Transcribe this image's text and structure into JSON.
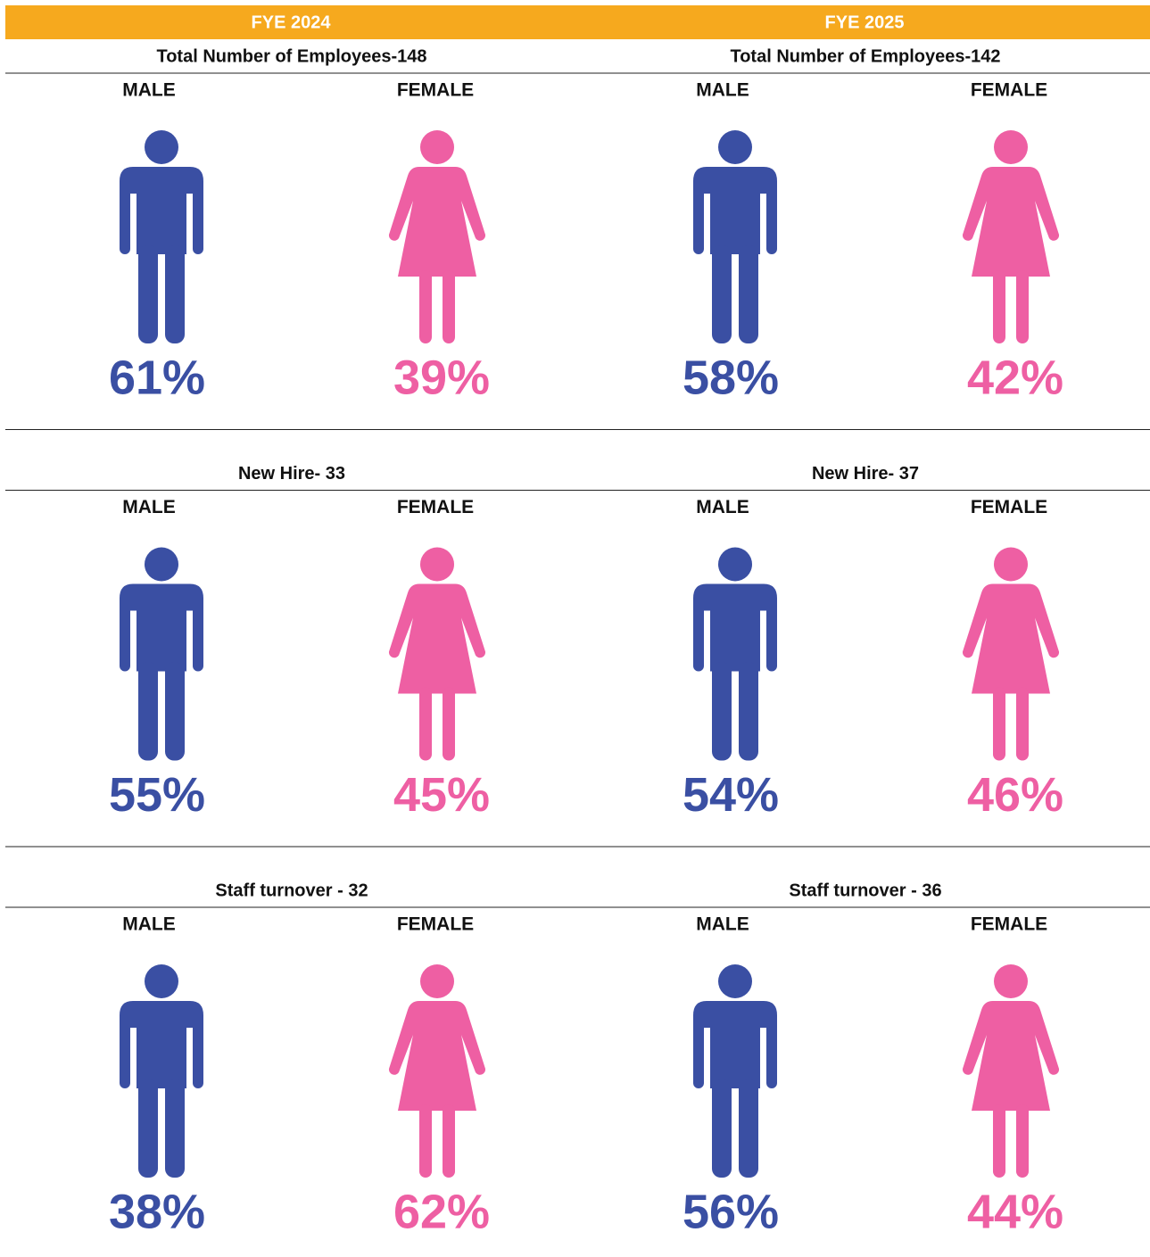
{
  "columns": [
    "FYE 2024",
    "FYE 2025"
  ],
  "colors": [
    "#3a4fa3",
    "#ee5fa3"
  ],
  "header_color": "#f6a91e",
  "sections": [
    {
      "titles": [
        "Total Number of Employees-148",
        "Total Number of Employees-142"
      ],
      "groups": [
        [
          {
            "label": "MALE",
            "percent": "61%"
          },
          {
            "label": "FEMALE",
            "percent": "39%"
          }
        ],
        [
          {
            "label": "MALE",
            "percent": "58%"
          },
          {
            "label": "FEMALE",
            "percent": "42%"
          }
        ]
      ]
    },
    {
      "titles": [
        "New Hire- 33",
        "New Hire- 37"
      ],
      "groups": [
        [
          {
            "label": "MALE",
            "percent": "55%"
          },
          {
            "label": "FEMALE",
            "percent": "45%"
          }
        ],
        [
          {
            "label": "MALE",
            "percent": "54%"
          },
          {
            "label": "FEMALE",
            "percent": "46%"
          }
        ]
      ]
    },
    {
      "titles": [
        "Staff turnover - 32",
        "Staff turnover - 36"
      ],
      "groups": [
        [
          {
            "label": "MALE",
            "percent": "38%"
          },
          {
            "label": "FEMALE",
            "percent": "62%"
          }
        ],
        [
          {
            "label": "MALE",
            "percent": "56%"
          },
          {
            "label": "FEMALE",
            "percent": "44%"
          }
        ]
      ]
    }
  ]
}
